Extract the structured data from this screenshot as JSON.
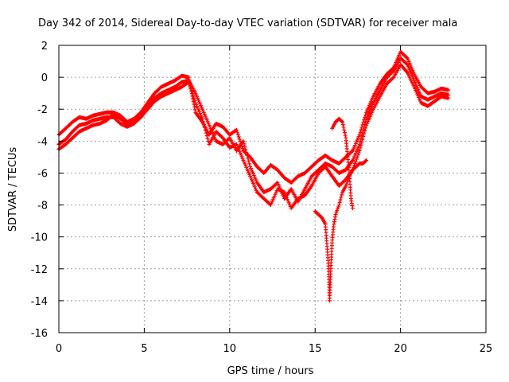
{
  "chart_data": {
    "type": "scatter",
    "title": "Day 342 of 2014, Sidereal Day-to-day VTEC variation (SDTVAR) for receiver mala",
    "xlabel": "GPS time / hours",
    "ylabel": "SDTVAR / TECUs",
    "xlim": [
      0,
      25
    ],
    "ylim": [
      -16,
      2
    ],
    "xticks": [
      0,
      5,
      10,
      15,
      20,
      25
    ],
    "yticks": [
      2,
      0,
      -2,
      -4,
      -6,
      -8,
      -10,
      -12,
      -14,
      -16
    ],
    "xtick_labels": [
      "0",
      "5",
      "10",
      "15",
      "20",
      "25"
    ],
    "ytick_labels": [
      "2",
      "0",
      "-2",
      "-4",
      "-6",
      "-8",
      "-10",
      "-12",
      "-14",
      "-16"
    ],
    "grid": true,
    "marker": "+",
    "color": "#ff0000",
    "series": [
      {
        "name": "pass-1",
        "x": [
          0.0,
          0.4,
          0.8,
          1.2,
          1.6,
          2.0,
          2.4,
          2.8,
          3.2,
          3.6,
          4.0,
          4.4,
          4.8,
          5.2,
          5.6,
          6.0,
          6.4,
          6.8,
          7.2,
          7.6,
          8.0,
          8.4,
          8.8,
          9.2,
          9.6,
          10.0,
          10.4,
          10.8,
          11.2,
          11.6,
          12.0,
          12.4,
          12.8,
          13.2,
          13.6,
          14.0,
          14.4,
          14.8,
          15.2,
          15.6,
          16.0,
          16.4,
          16.8,
          17.2,
          17.6,
          18.0,
          18.4,
          18.8,
          19.2,
          19.6,
          20.0,
          20.4,
          20.8,
          21.2,
          21.6,
          22.0,
          22.4,
          22.8
        ],
        "y": [
          -3.6,
          -3.2,
          -2.8,
          -2.5,
          -2.6,
          -2.4,
          -2.3,
          -2.2,
          -2.2,
          -2.4,
          -2.8,
          -2.6,
          -2.2,
          -1.6,
          -1.0,
          -0.6,
          -0.4,
          -0.2,
          0.1,
          0.0,
          -2.2,
          -2.8,
          -3.6,
          -2.9,
          -3.1,
          -3.6,
          -3.3,
          -4.6,
          -5.0,
          -5.6,
          -6.0,
          -5.5,
          -5.8,
          -6.3,
          -6.6,
          -6.2,
          -6.0,
          -5.6,
          -5.2,
          -4.9,
          -5.2,
          -5.4,
          -5.0,
          -4.6,
          -3.6,
          -2.2,
          -1.2,
          -0.4,
          0.2,
          0.6,
          1.6,
          1.2,
          0.2,
          -0.6,
          -1.0,
          -0.9,
          -0.7,
          -0.8
        ]
      },
      {
        "name": "pass-2",
        "x": [
          0.0,
          0.4,
          0.8,
          1.2,
          1.6,
          2.0,
          2.4,
          2.8,
          3.2,
          3.6,
          4.0,
          4.4,
          4.8,
          5.2,
          5.6,
          6.0,
          6.4,
          6.8,
          7.2,
          7.6,
          8.0,
          8.4,
          8.8,
          9.2,
          9.6,
          10.0,
          10.4,
          10.8,
          11.2,
          11.6,
          12.0,
          12.4,
          12.8,
          13.2,
          13.6,
          14.0,
          14.4,
          14.8,
          15.2,
          15.6,
          16.0,
          16.4,
          16.8,
          17.2,
          17.6,
          18.0,
          18.4,
          18.8,
          19.2,
          19.6,
          20.0,
          20.4,
          20.8,
          21.2,
          21.6,
          22.0,
          22.4,
          22.8
        ],
        "y": [
          -4.2,
          -3.9,
          -3.4,
          -3.0,
          -2.9,
          -2.7,
          -2.6,
          -2.5,
          -2.5,
          -2.9,
          -3.1,
          -2.9,
          -2.5,
          -2.0,
          -1.5,
          -1.2,
          -1.0,
          -0.8,
          -0.6,
          -0.3,
          -1.6,
          -2.6,
          -4.2,
          -3.4,
          -3.8,
          -4.4,
          -4.2,
          -5.2,
          -6.2,
          -7.2,
          -7.6,
          -8.0,
          -7.0,
          -7.2,
          -8.2,
          -7.6,
          -7.4,
          -6.8,
          -6.0,
          -5.6,
          -6.2,
          -6.8,
          -6.4,
          -5.8,
          -4.6,
          -3.0,
          -2.0,
          -1.2,
          -0.4,
          0.0,
          0.8,
          0.3,
          -0.6,
          -1.6,
          -1.8,
          -1.5,
          -1.2,
          -1.3
        ]
      },
      {
        "name": "pass-3",
        "x": [
          0.0,
          0.4,
          0.8,
          1.2,
          1.6,
          2.0,
          2.4,
          2.8,
          3.2,
          3.6,
          4.0,
          4.4,
          4.8,
          5.2,
          5.6,
          6.0,
          6.4,
          6.8,
          7.2,
          7.6,
          8.0,
          8.4,
          8.8,
          9.2,
          9.6,
          10.0,
          10.4,
          10.8,
          11.2,
          11.6,
          12.0,
          12.4,
          12.8,
          13.2,
          13.6,
          14.0,
          14.4,
          14.8,
          15.2,
          15.6,
          16.0,
          16.4,
          16.8,
          17.2,
          17.6,
          18.0,
          18.4,
          18.8,
          19.2,
          19.6,
          20.0,
          20.4,
          20.8,
          21.2,
          21.6,
          22.0,
          22.4,
          22.8
        ],
        "y": [
          -4.5,
          -4.2,
          -3.8,
          -3.4,
          -3.2,
          -3.0,
          -2.9,
          -2.7,
          -2.3,
          -2.6,
          -2.9,
          -2.7,
          -2.4,
          -1.8,
          -1.3,
          -1.0,
          -0.8,
          -0.6,
          -0.3,
          -0.2,
          -1.0,
          -2.0,
          -3.0,
          -4.0,
          -4.2,
          -3.8,
          -4.6,
          -4.0,
          -5.6,
          -6.6,
          -7.2,
          -7.0,
          -6.6,
          -7.6,
          -7.0,
          -7.8,
          -7.0,
          -6.2,
          -5.8,
          -5.4,
          -5.6,
          -6.0,
          -5.8,
          -5.2,
          -4.2,
          -2.6,
          -1.6,
          -0.8,
          0.0,
          0.4,
          1.2,
          0.8,
          -0.2,
          -1.2,
          -1.4,
          -1.2,
          -1.0,
          -1.1
        ]
      },
      {
        "name": "pass-4",
        "x": [
          15.0,
          15.2,
          15.4,
          15.6,
          15.8,
          15.85,
          15.9,
          16.0,
          16.1,
          16.2,
          16.4,
          16.6,
          16.8,
          17.0,
          17.2,
          17.4,
          17.6,
          17.8,
          18.0
        ],
        "y": [
          -8.4,
          -8.6,
          -8.8,
          -9.2,
          -12.0,
          -14.0,
          -12.5,
          -10.2,
          -9.2,
          -8.6,
          -8.0,
          -7.2,
          -6.8,
          -6.2,
          -5.8,
          -5.6,
          -5.4,
          -5.4,
          -5.2
        ]
      },
      {
        "name": "pass-5",
        "x": [
          16.0,
          16.2,
          16.4,
          16.6,
          16.8,
          17.0,
          17.1,
          17.2
        ],
        "y": [
          -3.2,
          -2.8,
          -2.6,
          -2.8,
          -3.8,
          -6.0,
          -7.6,
          -8.2
        ]
      }
    ]
  }
}
